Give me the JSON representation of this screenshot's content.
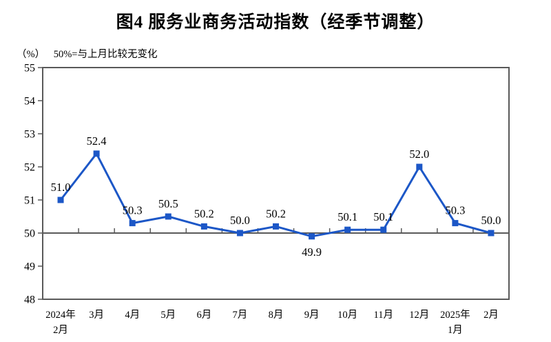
{
  "chart_data": {
    "type": "line",
    "title": "图4  服务业商务活动指数（经季节调整）",
    "unit_label": "（%）",
    "baseline_note": "50%=与上月比较无变化",
    "categories": [
      [
        "2024年",
        "2月"
      ],
      [
        "3月"
      ],
      [
        "4月"
      ],
      [
        "5月"
      ],
      [
        "6月"
      ],
      [
        "7月"
      ],
      [
        "8月"
      ],
      [
        "9月"
      ],
      [
        "10月"
      ],
      [
        "11月"
      ],
      [
        "12月"
      ],
      [
        "2025年",
        "1月"
      ],
      [
        "2月"
      ]
    ],
    "series": [
      {
        "name": "服务业商务活动指数",
        "values": [
          51.0,
          52.4,
          50.3,
          50.5,
          50.2,
          50.0,
          50.2,
          49.9,
          50.1,
          50.1,
          52.0,
          50.3,
          50.0
        ]
      }
    ],
    "value_labels": [
      "51.0",
      "52.4",
      "50.3",
      "50.5",
      "50.2",
      "50.0",
      "50.2",
      "49.9",
      "50.1",
      "50.1",
      "52.0",
      "50.3",
      "50.0"
    ],
    "ylim": [
      48,
      55
    ],
    "yticks": [
      55,
      54,
      53,
      52,
      51,
      50,
      49,
      48
    ],
    "baseline_value": 50,
    "grid": false,
    "legend_position": "none",
    "colors": {
      "line": "#1C57C7",
      "marker": "#1C57C7",
      "axis": "#595959",
      "text": "#000000",
      "background": "#ffffff"
    }
  }
}
